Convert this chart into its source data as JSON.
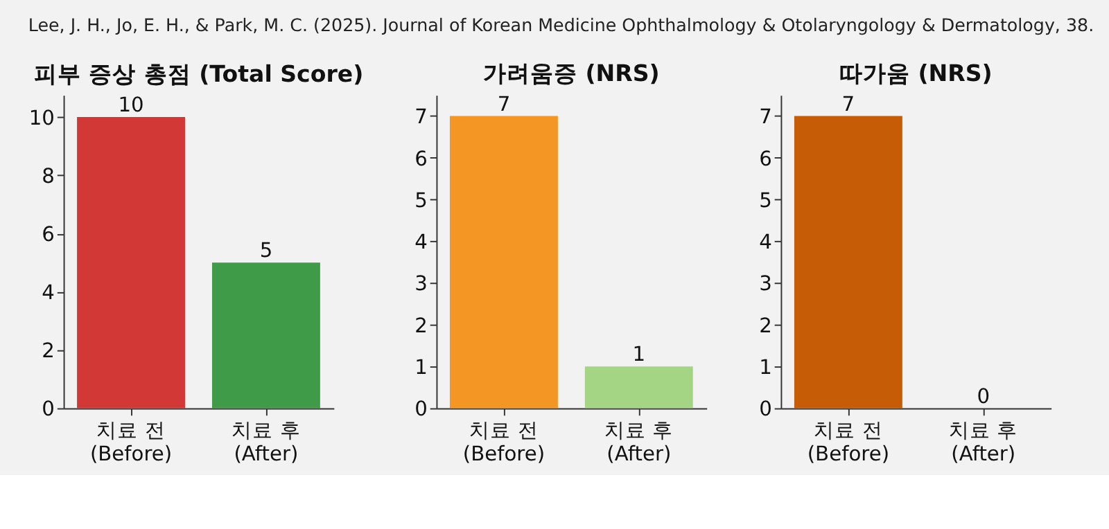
{
  "chart_data": [
    {
      "type": "bar",
      "title": "피부 증상 총점 (Total Score)",
      "annotations": [
        "Lee, J. H., Jo, E. H., & Park, M. C. (2025). Journal of Korean Medicine Ophthalmology & Otolaryngology & Dermatology, 38."
      ],
      "categories": [
        "치료 전\n(Before)",
        "치료 후\n(After)"
      ],
      "values": [
        10,
        5
      ],
      "colors": [
        "#d13836",
        "#3f9b48"
      ],
      "ylim": [
        0,
        10.75
      ],
      "yticks": [
        0,
        2,
        4,
        6,
        8,
        10
      ],
      "data_labels": true
    },
    {
      "type": "bar",
      "title": "가려움증 (NRS)",
      "categories": [
        "치료 전\n(Before)",
        "치료 후\n(After)"
      ],
      "values": [
        7,
        1
      ],
      "colors": [
        "#f39624",
        "#a3d585"
      ],
      "ylim": [
        0,
        7.5
      ],
      "yticks": [
        0,
        1,
        2,
        3,
        4,
        5,
        6,
        7
      ],
      "data_labels": true
    },
    {
      "type": "bar",
      "title": "따가움 (NRS)",
      "categories": [
        "치료 전\n(Before)",
        "치료 후\n(After)"
      ],
      "values": [
        7,
        0
      ],
      "colors": [
        "#c65c05",
        "#c65c05"
      ],
      "ylim": [
        0,
        7.5
      ],
      "yticks": [
        0,
        1,
        2,
        3,
        4,
        5,
        6,
        7
      ],
      "data_labels": true
    }
  ]
}
